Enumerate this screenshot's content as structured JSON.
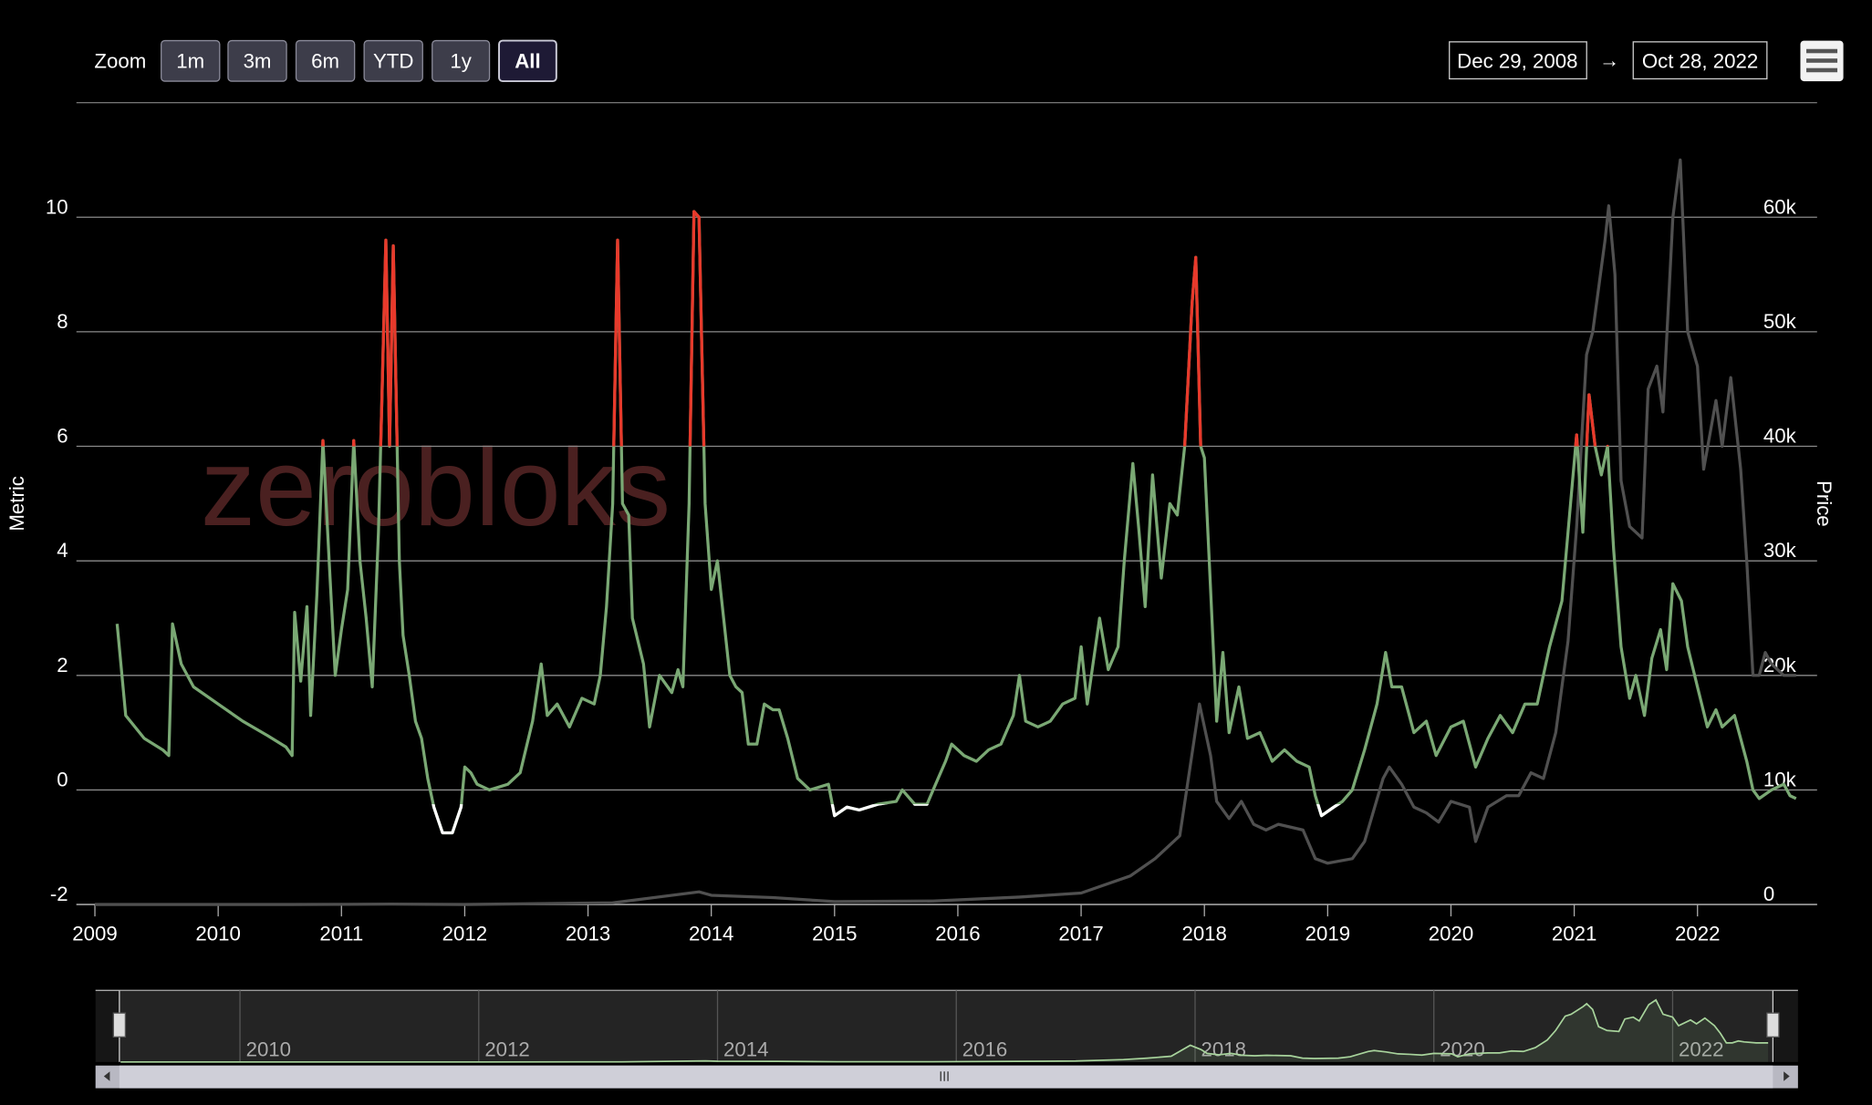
{
  "toolbar": {
    "zoom_label": "Zoom",
    "buttons": [
      "1m",
      "3m",
      "6m",
      "YTD",
      "1y",
      "All"
    ],
    "selected": "All",
    "from": "Dec 29, 2008",
    "separator": "→",
    "to": "Oct 28, 2022"
  },
  "chart_data": {
    "type": "line",
    "watermark": "zerobloks",
    "y_label": "Metric",
    "y2_label": "Price",
    "xlim": [
      2008.85,
      2022.97
    ],
    "xticks": [
      2009,
      2010,
      2011,
      2012,
      2013,
      2014,
      2015,
      2016,
      2017,
      2018,
      2019,
      2020,
      2021,
      2022
    ],
    "ylim": [
      -2,
      12
    ],
    "yticks": [
      -2,
      0,
      2,
      4,
      6,
      8,
      10
    ],
    "y2lim": [
      0,
      70000
    ],
    "y2ticks": [
      0,
      {
        "value": 10000,
        "label": "10k"
      },
      {
        "value": 20000,
        "label": "20k"
      },
      {
        "value": 30000,
        "label": "30k"
      },
      {
        "value": 40000,
        "label": "40k"
      },
      {
        "value": 50000,
        "label": "50k"
      },
      {
        "value": 60000,
        "label": "60k"
      }
    ],
    "grid": true,
    "series": [
      {
        "name": "Price",
        "color": "#505050",
        "axis": "y2",
        "x": [
          2009.0,
          2010.6,
          2011.4,
          2012.0,
          2013.2,
          2013.9,
          2014.0,
          2014.5,
          2015.0,
          2015.8,
          2016.5,
          2017.0,
          2017.4,
          2017.6,
          2017.8,
          2017.96,
          2018.05,
          2018.1,
          2018.2,
          2018.3,
          2018.4,
          2018.5,
          2018.6,
          2018.8,
          2018.9,
          2019.0,
          2019.2,
          2019.3,
          2019.45,
          2019.5,
          2019.6,
          2019.7,
          2019.8,
          2019.9,
          2020.0,
          2020.15,
          2020.2,
          2020.3,
          2020.45,
          2020.55,
          2020.65,
          2020.75,
          2020.85,
          2020.95,
          2021.02,
          2021.1,
          2021.15,
          2021.25,
          2021.28,
          2021.33,
          2021.38,
          2021.45,
          2021.55,
          2021.6,
          2021.67,
          2021.72,
          2021.8,
          2021.86,
          2021.92,
          2022.0,
          2022.05,
          2022.15,
          2022.2,
          2022.27,
          2022.35,
          2022.4,
          2022.45,
          2022.5,
          2022.55,
          2022.6,
          2022.7,
          2022.8
        ],
        "values": [
          0,
          0,
          30,
          5,
          150,
          1100,
          800,
          600,
          250,
          300,
          650,
          1000,
          2500,
          4000,
          6000,
          17500,
          13000,
          9000,
          7500,
          9000,
          7000,
          6500,
          7000,
          6500,
          4000,
          3600,
          4000,
          5500,
          11000,
          12000,
          10500,
          8500,
          8000,
          7200,
          9000,
          8500,
          5500,
          8500,
          9500,
          9500,
          11500,
          11000,
          15000,
          23000,
          33000,
          48000,
          50000,
          58000,
          61000,
          55000,
          37000,
          33000,
          32000,
          45000,
          47000,
          43000,
          60000,
          65000,
          50000,
          47000,
          38000,
          44000,
          40000,
          46000,
          38000,
          30000,
          20000,
          20000,
          22000,
          21000,
          20000,
          20000
        ]
      },
      {
        "name": "Metric",
        "color": "#7aa874",
        "axis": "y",
        "zones": [
          {
            "upto": -0.25,
            "color": "#ffffff"
          },
          {
            "from": 6,
            "color": "#e8392b"
          }
        ],
        "x": [
          2009.18,
          2009.25,
          2009.4,
          2009.55,
          2009.6,
          2009.63,
          2009.7,
          2009.8,
          2010.0,
          2010.2,
          2010.4,
          2010.55,
          2010.6,
          2010.62,
          2010.67,
          2010.72,
          2010.75,
          2010.8,
          2010.85,
          2010.9,
          2010.95,
          2011.0,
          2011.05,
          2011.1,
          2011.15,
          2011.2,
          2011.25,
          2011.3,
          2011.33,
          2011.36,
          2011.39,
          2011.42,
          2011.47,
          2011.5,
          2011.55,
          2011.6,
          2011.65,
          2011.7,
          2011.75,
          2011.82,
          2011.9,
          2011.97,
          2012.0,
          2012.05,
          2012.1,
          2012.2,
          2012.35,
          2012.45,
          2012.55,
          2012.62,
          2012.67,
          2012.75,
          2012.85,
          2012.95,
          2013.05,
          2013.1,
          2013.15,
          2013.2,
          2013.24,
          2013.28,
          2013.33,
          2013.36,
          2013.45,
          2013.5,
          2013.58,
          2013.68,
          2013.73,
          2013.77,
          2013.82,
          2013.86,
          2013.9,
          2013.95,
          2014.0,
          2014.05,
          2014.1,
          2014.15,
          2014.2,
          2014.25,
          2014.3,
          2014.37,
          2014.43,
          2014.5,
          2014.55,
          2014.62,
          2014.7,
          2014.8,
          2014.95,
          2015.0,
          2015.1,
          2015.2,
          2015.35,
          2015.5,
          2015.55,
          2015.65,
          2015.75,
          2015.8,
          2015.9,
          2015.95,
          2016.05,
          2016.15,
          2016.25,
          2016.35,
          2016.45,
          2016.5,
          2016.55,
          2016.65,
          2016.75,
          2016.85,
          2016.95,
          2017.0,
          2017.05,
          2017.15,
          2017.22,
          2017.3,
          2017.35,
          2017.42,
          2017.47,
          2017.52,
          2017.58,
          2017.65,
          2017.72,
          2017.78,
          2017.84,
          2017.9,
          2017.93,
          2017.97,
          2018.0,
          2018.05,
          2018.1,
          2018.15,
          2018.2,
          2018.28,
          2018.35,
          2018.45,
          2018.55,
          2018.65,
          2018.75,
          2018.85,
          2018.9,
          2018.95,
          2019.05,
          2019.12,
          2019.2,
          2019.3,
          2019.4,
          2019.47,
          2019.52,
          2019.6,
          2019.7,
          2019.8,
          2019.88,
          2020.0,
          2020.1,
          2020.2,
          2020.3,
          2020.4,
          2020.5,
          2020.6,
          2020.7,
          2020.8,
          2020.9,
          2020.97,
          2021.02,
          2021.07,
          2021.12,
          2021.17,
          2021.22,
          2021.27,
          2021.32,
          2021.38,
          2021.45,
          2021.5,
          2021.57,
          2021.63,
          2021.7,
          2021.75,
          2021.8,
          2021.87,
          2021.92,
          2022.0,
          2022.08,
          2022.15,
          2022.2,
          2022.3,
          2022.4,
          2022.45,
          2022.5,
          2022.6,
          2022.7,
          2022.75,
          2022.8
        ],
        "values": [
          2.9,
          1.3,
          0.9,
          0.7,
          0.6,
          2.9,
          2.2,
          1.8,
          1.5,
          1.2,
          0.95,
          0.75,
          0.6,
          3.1,
          1.9,
          3.2,
          1.3,
          3.4,
          6.1,
          4.0,
          2.0,
          2.8,
          3.5,
          6.1,
          4.0,
          3.0,
          1.8,
          4.5,
          7.0,
          9.6,
          6.0,
          9.5,
          4.0,
          2.7,
          2.0,
          1.2,
          0.9,
          0.2,
          -0.3,
          -0.75,
          -0.75,
          -0.3,
          0.4,
          0.3,
          0.1,
          0.0,
          0.1,
          0.3,
          1.2,
          2.2,
          1.3,
          1.5,
          1.1,
          1.6,
          1.5,
          2.0,
          3.2,
          5.0,
          9.6,
          5.0,
          4.8,
          3.0,
          2.2,
          1.1,
          2.0,
          1.7,
          2.1,
          1.8,
          5.0,
          10.1,
          10.0,
          5.0,
          3.5,
          4.0,
          3.0,
          2.0,
          1.8,
          1.7,
          0.8,
          0.8,
          1.5,
          1.4,
          1.4,
          0.9,
          0.2,
          0.0,
          0.1,
          -0.45,
          -0.3,
          -0.35,
          -0.25,
          -0.2,
          0.0,
          -0.25,
          -0.25,
          0.0,
          0.5,
          0.8,
          0.6,
          0.5,
          0.7,
          0.8,
          1.3,
          2.0,
          1.2,
          1.1,
          1.2,
          1.5,
          1.6,
          2.5,
          1.5,
          3.0,
          2.1,
          2.5,
          4.0,
          5.7,
          4.5,
          3.2,
          5.5,
          3.7,
          5.0,
          4.8,
          6.0,
          8.5,
          9.3,
          6.0,
          5.8,
          3.5,
          1.2,
          2.4,
          1.0,
          1.8,
          0.9,
          1.0,
          0.5,
          0.7,
          0.5,
          0.4,
          -0.1,
          -0.45,
          -0.3,
          -0.2,
          0.0,
          0.7,
          1.5,
          2.4,
          1.8,
          1.8,
          1.0,
          1.2,
          0.6,
          1.1,
          1.2,
          0.4,
          0.9,
          1.3,
          1.0,
          1.5,
          1.5,
          2.5,
          3.3,
          5.0,
          6.2,
          4.5,
          6.9,
          6.0,
          5.5,
          6.0,
          4.2,
          2.5,
          1.6,
          2.0,
          1.3,
          2.3,
          2.8,
          2.1,
          3.6,
          3.3,
          2.5,
          1.8,
          1.1,
          1.4,
          1.1,
          1.3,
          0.5,
          0.0,
          -0.15,
          0.0,
          0.1,
          -0.1,
          -0.15
        ]
      }
    ]
  },
  "navigator": {
    "xlim": [
      2009,
      2022.85
    ],
    "xticks": [
      2010,
      2012,
      2014,
      2016,
      2018,
      2020,
      2022
    ]
  }
}
